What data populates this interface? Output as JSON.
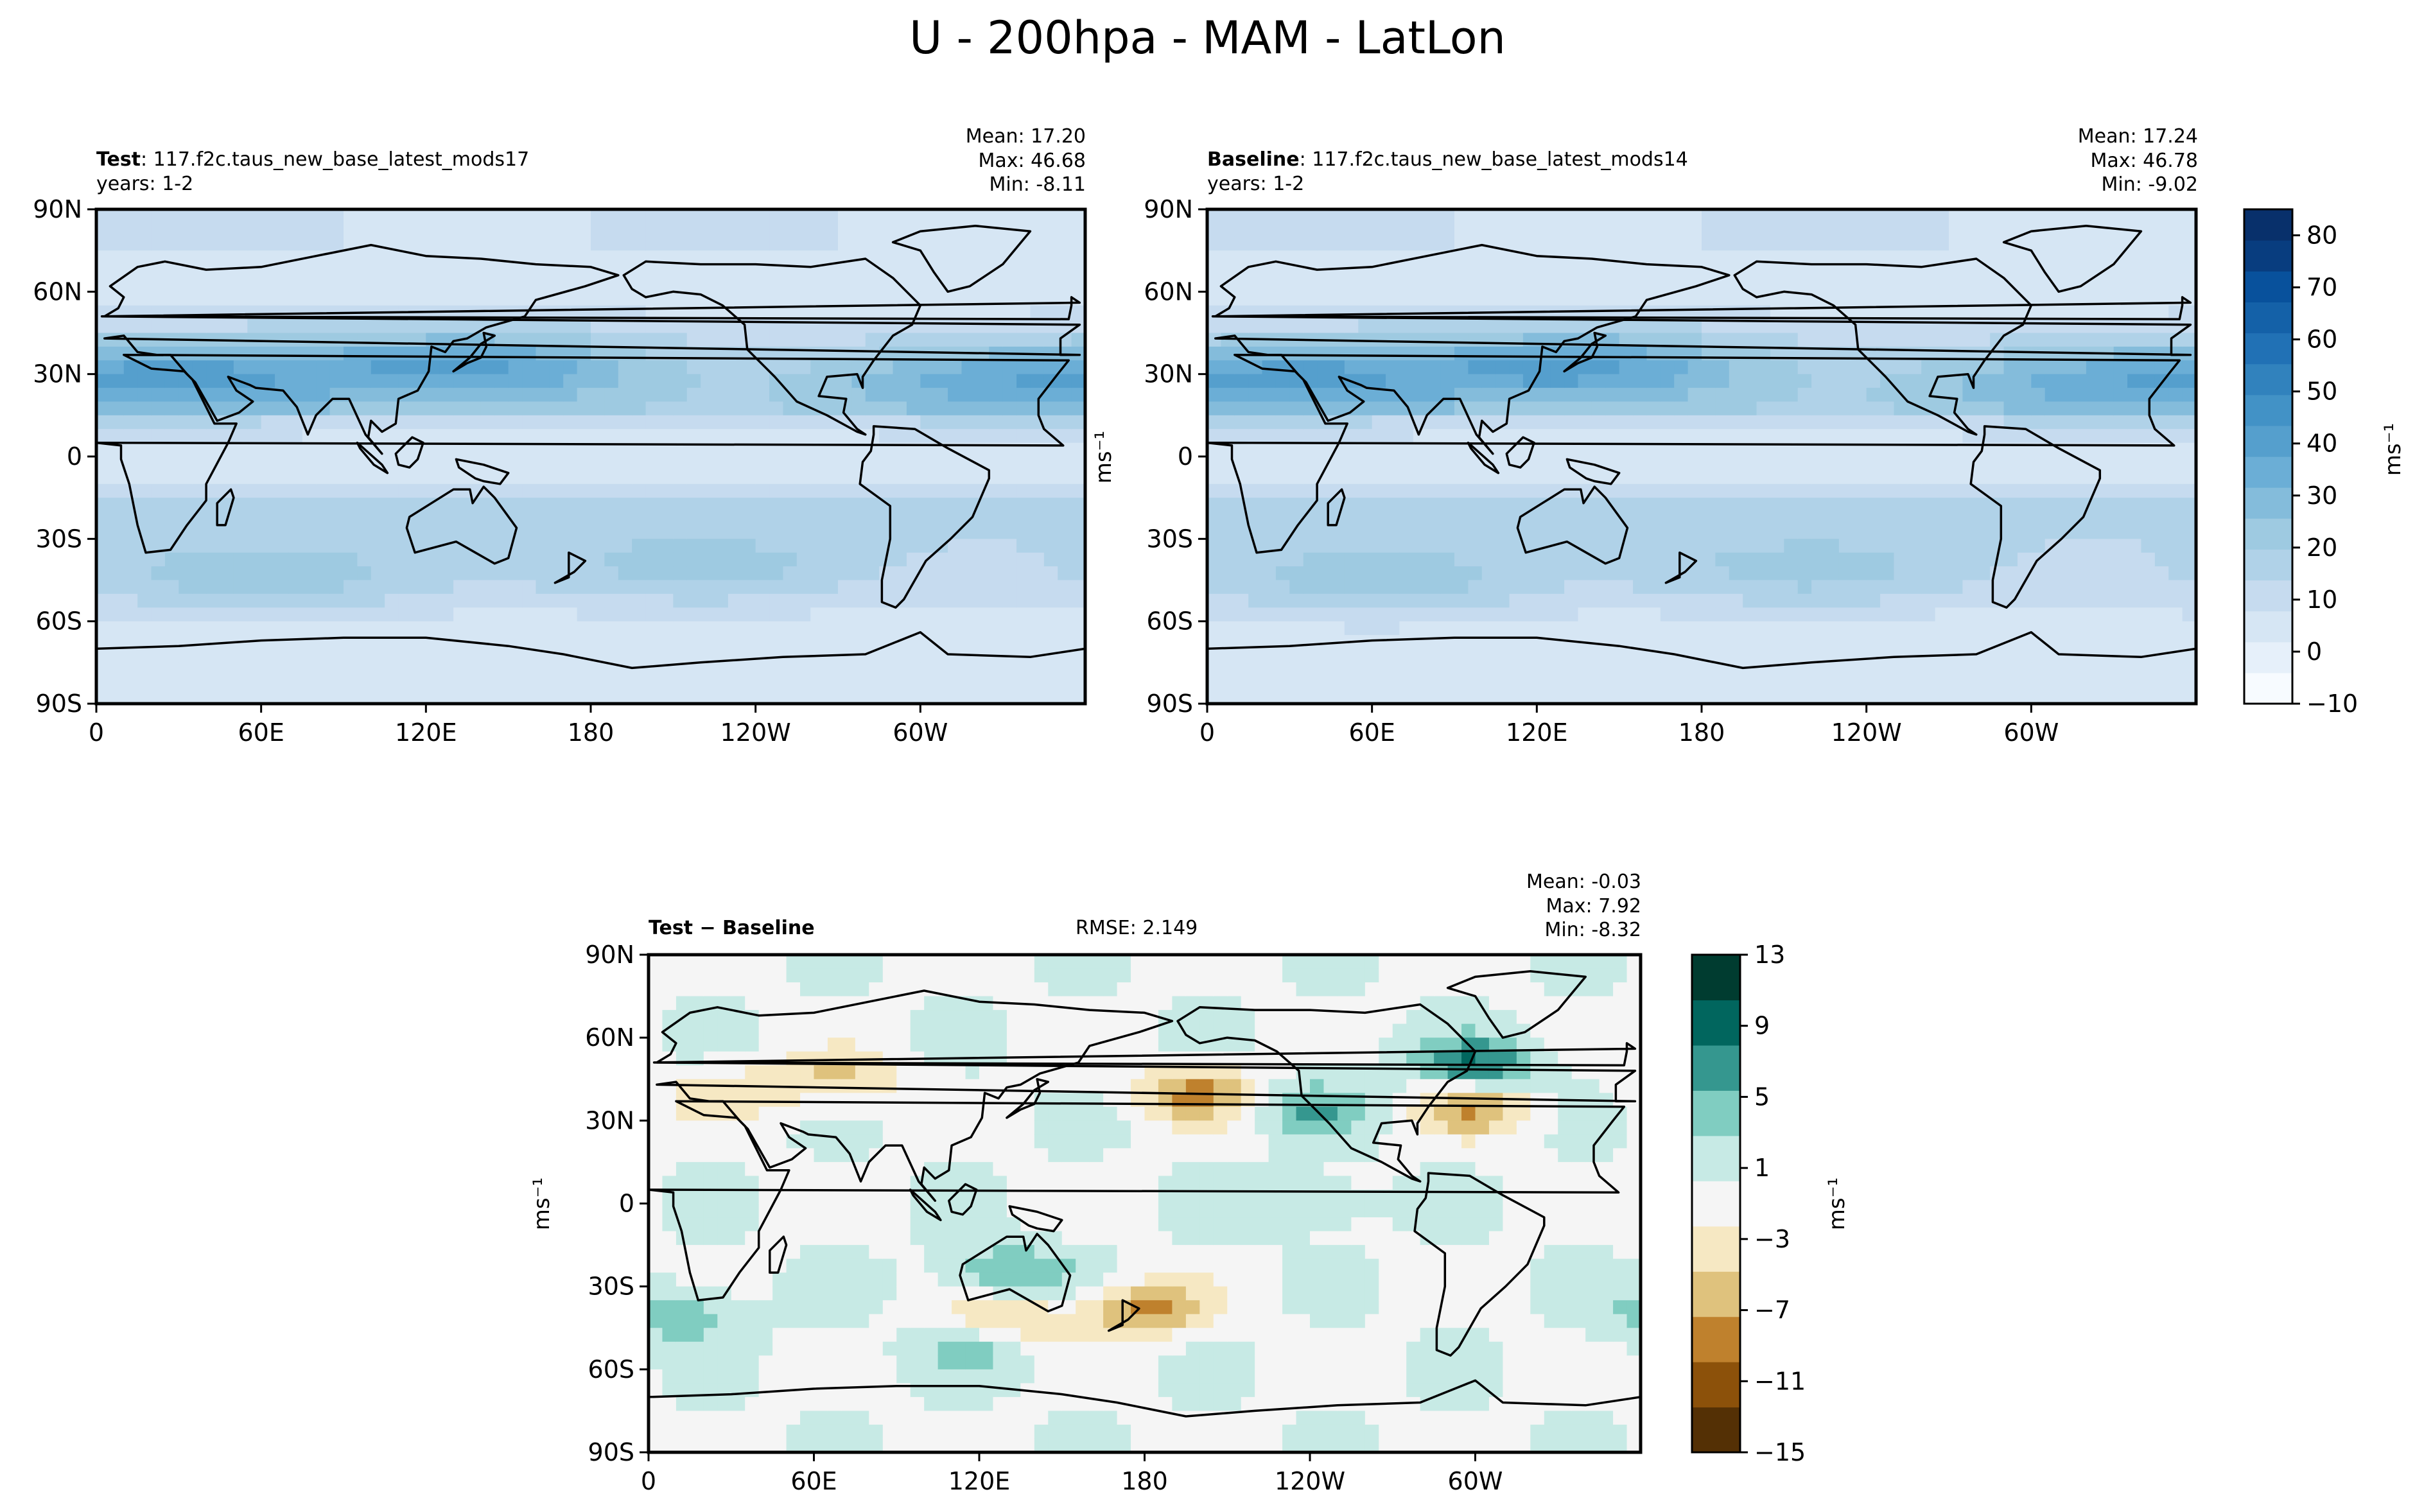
{
  "suptitle": "U - 200hpa - MAM - LatLon",
  "panels": {
    "test": {
      "name_label": "Test",
      "case_text": ": 117.f2c.taus_new_base_latest_mods17",
      "years": "years: 1-2",
      "stats": {
        "mean": "Mean: 17.20",
        "max": "Max: 46.68",
        "min": "Min: -8.11"
      }
    },
    "baseline": {
      "name_label": "Baseline",
      "case_text": ": 117.f2c.taus_new_base_latest_mods14",
      "years": "years: 1-2",
      "stats": {
        "mean": "Mean: 17.24",
        "max": "Max: 46.78",
        "min": "Min: -9.02"
      }
    },
    "diff": {
      "name_label": "Test − Baseline",
      "rmse": "RMSE: 2.149",
      "stats": {
        "mean": "Mean: -0.03",
        "max": "Max:  7.92",
        "min": "Min: -8.32"
      }
    }
  },
  "unit_label": "ms⁻¹",
  "colors": {
    "land_outline": "#000000",
    "blues": [
      "#f7fbff",
      "#e6f0fa",
      "#d6e6f4",
      "#c6dbef",
      "#b0d2e8",
      "#9ecae1",
      "#84bcdb",
      "#6baed6",
      "#559fcd",
      "#4292c6",
      "#3182bd",
      "#2171b5",
      "#1461a8",
      "#08519c",
      "#083d7f",
      "#08306b"
    ],
    "brbg": [
      "#543005",
      "#8c510a",
      "#bf812d",
      "#dfc27d",
      "#f6e8c3",
      "#f5f5f5",
      "#c7eae5",
      "#80cdc1",
      "#35978f",
      "#01665e",
      "#003c30"
    ]
  },
  "chart_data": [
    {
      "type": "heatmap",
      "id": "test",
      "title": "Test",
      "x_range": [
        0,
        360
      ],
      "y_range": [
        -90,
        90
      ],
      "xticks": [
        "0",
        "60E",
        "120E",
        "180",
        "120W",
        "60W"
      ],
      "yticks": [
        "90N",
        "60N",
        "30N",
        "0",
        "30S",
        "60S",
        "90S"
      ],
      "jets": [
        {
          "lon": 140,
          "lat": 33,
          "peak": 45
        },
        {
          "lon": 40,
          "lat": 30,
          "peak": 38
        },
        {
          "lon": 320,
          "lat": 28,
          "peak": 32
        },
        {
          "lon": 60,
          "lat": -45,
          "peak": 28
        },
        {
          "lon": 220,
          "lat": -42,
          "peak": 24
        }
      ],
      "mean": 17.2,
      "max": 46.68,
      "min": -8.11
    },
    {
      "type": "heatmap",
      "id": "baseline",
      "title": "Baseline",
      "x_range": [
        0,
        360
      ],
      "y_range": [
        -90,
        90
      ],
      "xticks": [
        "0",
        "60E",
        "120E",
        "180",
        "120W",
        "60W"
      ],
      "yticks": [
        "90N",
        "60N",
        "30N",
        "0",
        "30S",
        "60S",
        "90S"
      ],
      "jets": [
        {
          "lon": 140,
          "lat": 33,
          "peak": 46
        },
        {
          "lon": 40,
          "lat": 30,
          "peak": 38
        },
        {
          "lon": 320,
          "lat": 27,
          "peak": 32
        },
        {
          "lon": 60,
          "lat": -46,
          "peak": 28
        },
        {
          "lon": 220,
          "lat": -43,
          "peak": 24
        }
      ],
      "mean": 17.24,
      "max": 46.78,
      "min": -9.02
    },
    {
      "type": "heatmap",
      "id": "diff",
      "title": "Test − Baseline",
      "x_range": [
        0,
        360
      ],
      "y_range": [
        -90,
        90
      ],
      "xticks": [
        "0",
        "60E",
        "120E",
        "180",
        "120W",
        "60W"
      ],
      "yticks": [
        "90N",
        "60N",
        "30N",
        "0",
        "30S",
        "60S",
        "90S"
      ],
      "anomalies": [
        {
          "lon": 70,
          "lat": 45,
          "val": -5
        },
        {
          "lon": 200,
          "lat": 40,
          "val": -8
        },
        {
          "lon": 300,
          "lat": 50,
          "val": 8
        },
        {
          "lon": 300,
          "lat": 35,
          "val": -7
        },
        {
          "lon": 240,
          "lat": 35,
          "val": 5
        },
        {
          "lon": 130,
          "lat": -25,
          "val": 6
        },
        {
          "lon": 130,
          "lat": -42,
          "val": -6
        },
        {
          "lon": 180,
          "lat": -38,
          "val": -8
        },
        {
          "lon": 240,
          "lat": 0,
          "val": 3
        },
        {
          "lon": 120,
          "lat": -52,
          "val": 4
        },
        {
          "lon": 10,
          "lat": -40,
          "val": 5
        },
        {
          "lon": 30,
          "lat": 40,
          "val": -4
        }
      ],
      "mean": -0.03,
      "max": 7.92,
      "min": -8.32,
      "rmse": 2.149
    }
  ],
  "colorbars": {
    "abs": {
      "ticks": [
        "−10",
        "0",
        "10",
        "20",
        "30",
        "40",
        "50",
        "60",
        "70",
        "80"
      ],
      "values": [
        -10,
        0,
        10,
        20,
        30,
        40,
        50,
        60,
        70,
        80
      ],
      "range": [
        -10,
        85
      ]
    },
    "diff": {
      "ticks": [
        "−15",
        "−11",
        "−7",
        "−3",
        "1",
        "5",
        "9",
        "13"
      ],
      "values": [
        -15,
        -11,
        -7,
        -3,
        1,
        5,
        9,
        13
      ],
      "range": [
        -15,
        13
      ]
    }
  }
}
